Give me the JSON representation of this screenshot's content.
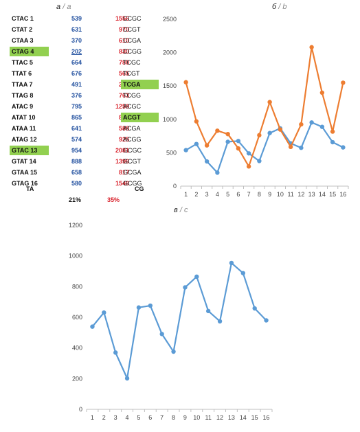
{
  "panel_a": {
    "label": "а",
    "label_alt": "a",
    "rows": [
      {
        "ta": "CTAC  1",
        "ta_val": "539",
        "cg_val": "1556",
        "cg": "CCGC",
        "ta_hl": false,
        "cg_hl": false,
        "ta_ul": false
      },
      {
        "ta": "CTAT  2",
        "ta_val": "631",
        "cg_val": "970",
        "cg": "CCGT",
        "ta_hl": false,
        "cg_hl": false,
        "ta_ul": false
      },
      {
        "ta": "CTAA  3",
        "ta_val": "370",
        "cg_val": "610",
        "cg": "CCGA",
        "ta_hl": false,
        "cg_hl": false,
        "ta_ul": false
      },
      {
        "ta": "CTAG  4",
        "ta_val": "202",
        "cg_val": "830",
        "cg": "CCGG",
        "ta_hl": true,
        "cg_hl": false,
        "ta_ul": true
      },
      {
        "ta": "TTAC  5",
        "ta_val": "664",
        "cg_val": "780",
        "cg": "TCGC",
        "ta_hl": false,
        "cg_hl": false,
        "ta_ul": false
      },
      {
        "ta": "TTAT  6",
        "ta_val": "676",
        "cg_val": "565",
        "cg": "TCGT",
        "ta_hl": false,
        "cg_hl": false,
        "ta_ul": false
      },
      {
        "ta": "TTAA  7",
        "ta_val": "491",
        "cg_val": "295",
        "cg": "TCGA",
        "ta_hl": false,
        "cg_hl": true,
        "ta_ul": false
      },
      {
        "ta": "TTAG  8",
        "ta_val": "376",
        "cg_val": "763",
        "cg": "TCGG",
        "ta_hl": false,
        "cg_hl": false,
        "ta_ul": false
      },
      {
        "ta": "ATAC  9",
        "ta_val": "795",
        "cg_val": "1259",
        "cg": "ACGC",
        "ta_hl": false,
        "cg_hl": false,
        "ta_ul": false
      },
      {
        "ta": "ATAT 10",
        "ta_val": "865",
        "cg_val": "848",
        "cg": "ACGT",
        "ta_hl": false,
        "cg_hl": true,
        "ta_ul": false
      },
      {
        "ta": "ATAA 11",
        "ta_val": "641",
        "cg_val": "588",
        "cg": "ACGA",
        "ta_hl": false,
        "cg_hl": false,
        "ta_ul": false
      },
      {
        "ta": "ATAG 12",
        "ta_val": "574",
        "cg_val": "925",
        "cg": "ACGG",
        "ta_hl": false,
        "cg_hl": false,
        "ta_ul": false
      },
      {
        "ta": "GTAC 13",
        "ta_val": "954",
        "cg_val": "2081",
        "cg": "GCGC",
        "ta_hl": true,
        "cg_hl": false,
        "ta_ul": false
      },
      {
        "ta": "GTAT 14",
        "ta_val": "888",
        "cg_val": "1399",
        "cg": "GCGT",
        "ta_hl": false,
        "cg_hl": false,
        "ta_ul": false
      },
      {
        "ta": "GTAA 15",
        "ta_val": "658",
        "cg_val": "817",
        "cg": "GCGA",
        "ta_hl": false,
        "cg_hl": false,
        "ta_ul": false
      },
      {
        "ta": "GTAG 16",
        "ta_val": "580",
        "cg_val": "1549",
        "cg": "GCGG",
        "ta_hl": false,
        "cg_hl": false,
        "ta_ul": false
      }
    ],
    "footer_ta": "TA",
    "footer_cg": "CG",
    "pct_ta": "21%",
    "pct_cg": "35%"
  },
  "panel_b": {
    "label": "б",
    "label_alt": "b"
  },
  "panel_c": {
    "label": "в",
    "label_alt": "c"
  },
  "colors": {
    "blue": "#5b9bd5",
    "orange": "#ed7d31",
    "highlight": "#92d050",
    "red": "#d9232d",
    "navy": "#1f4e9e"
  },
  "chart_data": [
    {
      "type": "line",
      "x": [
        1,
        2,
        3,
        4,
        5,
        6,
        7,
        8,
        9,
        10,
        11,
        12,
        13,
        14,
        15,
        16
      ],
      "series": [
        {
          "color": "#5b9bd5",
          "values": [
            539,
            631,
            370,
            202,
            664,
            676,
            491,
            376,
            795,
            865,
            641,
            574,
            954,
            888,
            658,
            580
          ]
        },
        {
          "color": "#ed7d31",
          "values": [
            1556,
            970,
            610,
            830,
            780,
            565,
            295,
            763,
            1259,
            848,
            588,
            925,
            2081,
            1399,
            817,
            1549
          ]
        }
      ],
      "ylim": [
        0,
        2500
      ],
      "yticks": [
        0,
        500,
        1000,
        1500,
        2000,
        2500
      ],
      "grid": false
    },
    {
      "type": "line",
      "x": [
        1,
        2,
        3,
        4,
        5,
        6,
        7,
        8,
        9,
        10,
        11,
        12,
        13,
        14,
        15,
        16
      ],
      "series": [
        {
          "color": "#5b9bd5",
          "values": [
            539,
            631,
            370,
            202,
            664,
            676,
            491,
            376,
            795,
            865,
            641,
            574,
            954,
            888,
            658,
            580
          ]
        }
      ],
      "ylim": [
        0,
        1200
      ],
      "yticks": [
        0,
        200,
        400,
        600,
        800,
        1000,
        1200
      ],
      "grid": false
    }
  ]
}
